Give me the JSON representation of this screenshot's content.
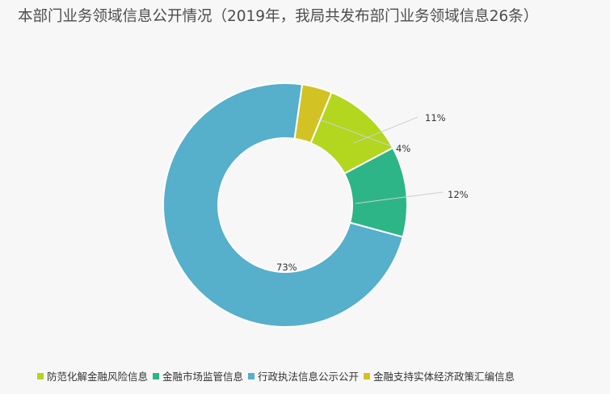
{
  "chart_data": {
    "type": "pie",
    "subtype": "donut",
    "title": "本部门业务领域信息公开情况（2019年，我局共发布部门业务领域信息26条）",
    "legend_position": "bottom",
    "slices": [
      {
        "name": "防范化解金融风险信息",
        "value": 11,
        "label": "11%",
        "color": "#b3d61f"
      },
      {
        "name": "金融市场监管信息",
        "value": 12,
        "label": "12%",
        "color": "#2db587"
      },
      {
        "name": "行政执法信息公示公开",
        "value": 73,
        "label": "73%",
        "color": "#56afcb"
      },
      {
        "name": "金融支持实体经济政策汇编信息",
        "value": 4,
        "label": "4%",
        "color": "#d3c223"
      }
    ]
  }
}
